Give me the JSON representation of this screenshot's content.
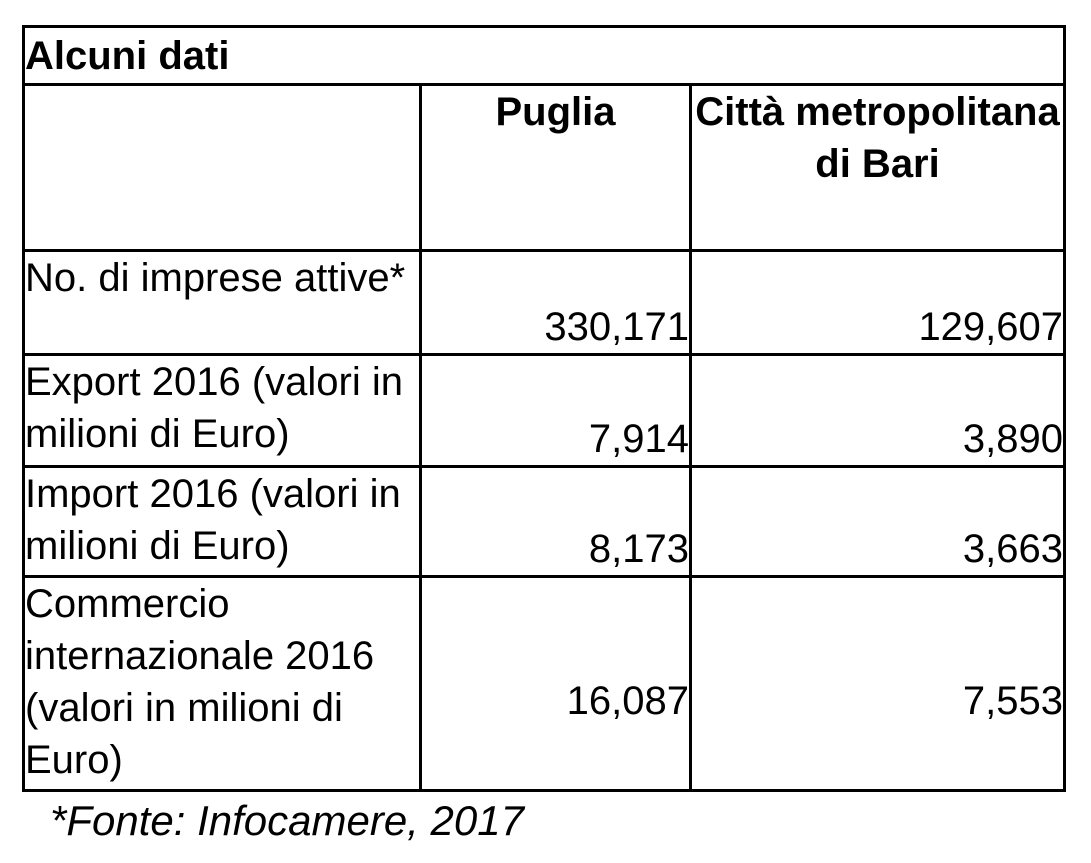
{
  "table": {
    "title": "Alcuni dati",
    "columns": [
      "",
      "Puglia",
      "Città metropolitana di Bari"
    ],
    "rows": [
      {
        "label": "No. di imprese attive*",
        "puglia": "330,171",
        "bari": "129,607"
      },
      {
        "label": "Export 2016 (valori in milioni di Euro)",
        "puglia": "7,914",
        "bari": "3,890"
      },
      {
        "label": "Import 2016 (valori in milioni di Euro)",
        "puglia": "8,173",
        "bari": "3,663"
      },
      {
        "label": "Commercio internazionale 2016 (valori in milioni di Euro)",
        "puglia": "16,087",
        "bari": "7,553"
      }
    ],
    "footnote": "*Fonte: Infocamere, 2017"
  },
  "chart_data": {
    "type": "table",
    "title": "Alcuni dati",
    "categories": [
      "No. di imprese attive*",
      "Export 2016 (valori in milioni di Euro)",
      "Import 2016 (valori in milioni di Euro)",
      "Commercio internazionale 2016 (valori in milioni di Euro)"
    ],
    "series": [
      {
        "name": "Puglia",
        "values": [
          330171,
          7914,
          8173,
          16087
        ]
      },
      {
        "name": "Città metropolitana di Bari",
        "values": [
          129607,
          3890,
          3663,
          7553
        ]
      }
    ],
    "source": "*Fonte: Infocamere, 2017"
  }
}
